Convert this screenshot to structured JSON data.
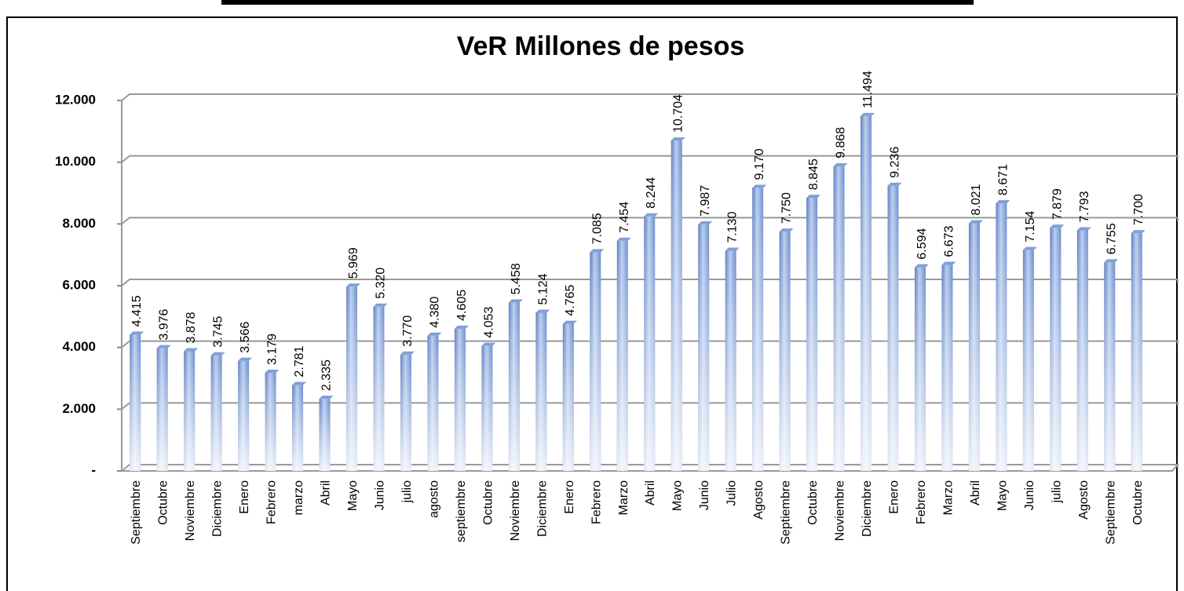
{
  "chart_data": {
    "type": "bar",
    "title": "VeR Millones de pesos",
    "categories": [
      "Septiembre",
      "Octubre",
      "Noviembre",
      "Diciembre",
      "Enero",
      "Febrero",
      "marzo",
      "Abril",
      "Mayo",
      "Junio",
      "julio",
      "agosto",
      "septiembre",
      "Octubre",
      "Noviembre",
      "Diciembre",
      "Enero",
      "Febrero",
      "Marzo",
      "Abril",
      "Mayo",
      "Junio",
      "Julio",
      "Agosto",
      "Septiembre",
      "Octubre",
      "Noviembre",
      "Diciembre",
      "Enero",
      "Febrero",
      "Marzo",
      "Abril",
      "Mayo",
      "Junio",
      "julio",
      "Agosto",
      "Septiembre",
      "Octubre"
    ],
    "values": [
      4415,
      3976,
      3878,
      3745,
      3566,
      3179,
      2781,
      2335,
      5969,
      5320,
      3770,
      4380,
      4605,
      4053,
      5458,
      5124,
      4765,
      7085,
      7454,
      8244,
      10704,
      7987,
      7130,
      9170,
      7750,
      8845,
      9868,
      11494,
      9236,
      6594,
      6673,
      8021,
      8671,
      7154,
      7879,
      7793,
      6755,
      7700
    ],
    "value_labels": [
      "4.415",
      "3.976",
      "3.878",
      "3.745",
      "3.566",
      "3.179",
      "2.781",
      "2.335",
      "5.969",
      "5.320",
      "3.770",
      "4.380",
      "4.605",
      "4.053",
      "5.458",
      "5.124",
      "4.765",
      "7.085",
      "7.454",
      "8.244",
      "10.704",
      "7.987",
      "7.130",
      "9.170",
      "7.750",
      "8.845",
      "9.868",
      "11.494",
      "9.236",
      "6.594",
      "6.673",
      "8.021",
      "8.671",
      "7.154",
      "7.879",
      "7.793",
      "6.755",
      "7.700"
    ],
    "color": "#7f9fd8",
    "ylim": [
      0,
      12000
    ],
    "yticks": [
      {
        "value": 0,
        "label": "-"
      },
      {
        "value": 2000,
        "label": "2.000"
      },
      {
        "value": 4000,
        "label": "4.000"
      },
      {
        "value": 6000,
        "label": "6.000"
      },
      {
        "value": 8000,
        "label": "8.000"
      },
      {
        "value": 10000,
        "label": "10.000"
      },
      {
        "value": 12000,
        "label": "12.000"
      }
    ],
    "grid": true
  }
}
